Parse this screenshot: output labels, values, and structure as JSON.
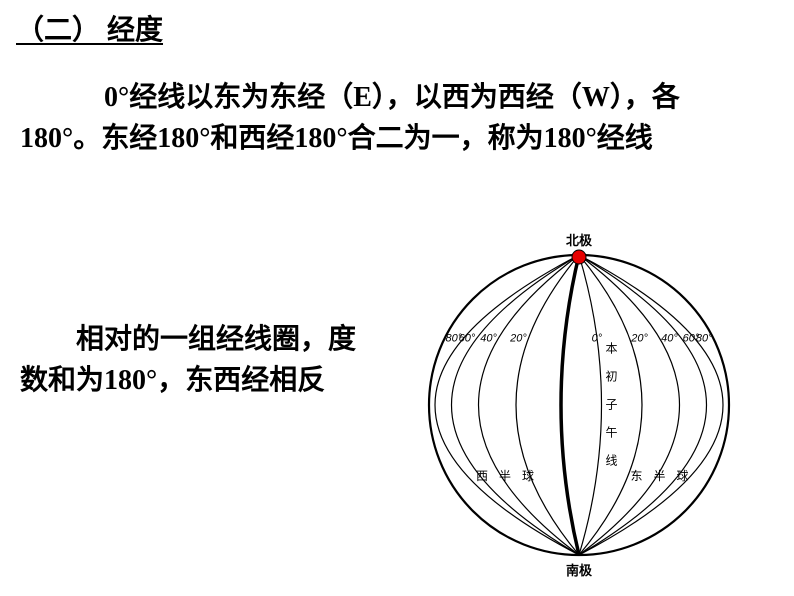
{
  "heading": "（二） 经度",
  "paragraph1": "0°经线以东为东经（E），以西为西经（W），各180°。东经180°和西经180°合二为一，称为180°经线",
  "paragraph2": "相对的一组经线圈，度数和为180°，东西经相反",
  "globe": {
    "north_label": "北极",
    "south_label": "南极",
    "west_hemi": "西  半  球",
    "east_hemi": "东  半  球",
    "prime_meridian_chars": [
      "本",
      "初",
      "子",
      "午",
      "线"
    ],
    "zero_label": "0°",
    "degrees": [
      "20°",
      "40°",
      "60°",
      "80°"
    ],
    "pole_color": "#e60000",
    "stroke": "#000000",
    "background": "#ffffff",
    "circle_radius": 150,
    "thick_line_width": 3.5,
    "thin_line_width": 1.2
  }
}
